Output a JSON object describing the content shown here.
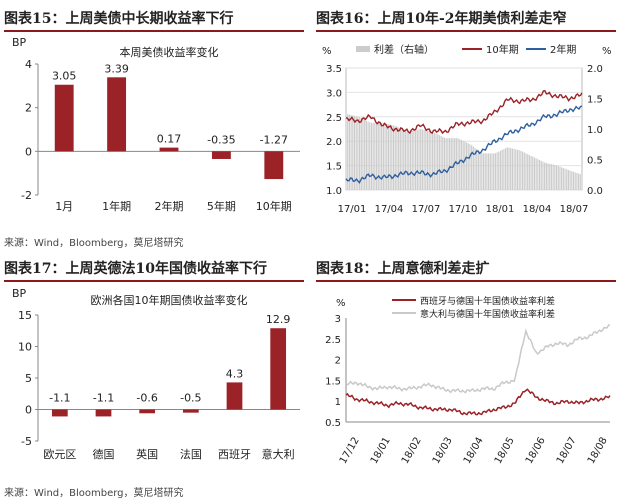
{
  "panels": {
    "p15": {
      "title": "图表15：上周美债中长期收益率下行"
    },
    "p16": {
      "title": "图表16：上周10年-2年期美债利差走窄"
    },
    "p17": {
      "title": "图表17：上周英德法10年国债收益率下行"
    },
    "p18": {
      "title": "图表18：上周意德利差走扩"
    }
  },
  "sources": {
    "top": "来源：Wind，Bloomberg，莫尼塔研究",
    "bottom": "来源：Wind，Bloomberg，莫尼塔研究"
  },
  "colors": {
    "bar": "#9b2226",
    "line10y": "#9b2226",
    "line2y": "#2f5f9e",
    "spread": "#cccccc",
    "line_it": "#c9c9c9",
    "rule": "#8c1a1a"
  },
  "chart_data": [
    {
      "type": "bar",
      "title": "本周美债收益率变化",
      "ylabel": "BP",
      "categories": [
        "1月",
        "1年期",
        "2年期",
        "5年期",
        "10年期"
      ],
      "values": [
        3.05,
        3.39,
        0.17,
        -0.35,
        -1.27
      ],
      "value_labels": [
        "3.05",
        "3.39",
        "0.17",
        "-0.35",
        "-1.27"
      ],
      "ylim": [
        -2,
        4
      ],
      "yticks": [
        "-2",
        "0",
        "2",
        "4"
      ]
    },
    {
      "type": "line",
      "ylabel_left": "%",
      "ylabel_right": "%",
      "ylim_left": [
        1.0,
        3.5
      ],
      "ylim_right": [
        0.0,
        2.0
      ],
      "yticks_left": [
        "1.0",
        "1.5",
        "2.0",
        "2.5",
        "3.0",
        "3.5"
      ],
      "yticks_right": [
        "0.0",
        "0.5",
        "1.0",
        "1.5",
        "2.0"
      ],
      "xticks": [
        "17/01",
        "17/04",
        "17/07",
        "17/10",
        "18/01",
        "18/04",
        "18/07"
      ],
      "legend": [
        "利差（右轴）",
        "10年期",
        "2年期"
      ],
      "grid": true,
      "x": [
        "17/01",
        "17/02",
        "17/03",
        "17/04",
        "17/05",
        "17/06",
        "17/07",
        "17/08",
        "17/09",
        "17/10",
        "17/11",
        "17/12",
        "18/01",
        "18/02",
        "18/03",
        "18/04",
        "18/05",
        "18/06",
        "18/07",
        "18/08"
      ],
      "series": [
        {
          "name": "利差（右轴）",
          "axis": "right",
          "values": [
            1.25,
            1.2,
            1.1,
            1.1,
            1.05,
            0.95,
            1.0,
            0.95,
            0.85,
            0.85,
            0.75,
            0.6,
            0.6,
            0.7,
            0.65,
            0.55,
            0.45,
            0.4,
            0.32,
            0.25
          ]
        },
        {
          "name": "10年期",
          "axis": "left",
          "values": [
            2.45,
            2.42,
            2.5,
            2.32,
            2.25,
            2.2,
            2.32,
            2.2,
            2.2,
            2.35,
            2.38,
            2.42,
            2.6,
            2.85,
            2.82,
            2.85,
            3.0,
            2.92,
            2.88,
            2.95
          ]
        },
        {
          "name": "2年期",
          "axis": "left",
          "values": [
            1.2,
            1.2,
            1.3,
            1.25,
            1.3,
            1.35,
            1.35,
            1.32,
            1.4,
            1.55,
            1.7,
            1.82,
            2.0,
            2.15,
            2.25,
            2.35,
            2.5,
            2.55,
            2.65,
            2.68
          ]
        }
      ]
    },
    {
      "type": "bar",
      "title": "欧洲各国10年期国债收益率变化",
      "ylabel": "BP",
      "categories": [
        "欧元区",
        "德国",
        "英国",
        "法国",
        "西班牙",
        "意大利"
      ],
      "values": [
        -1.1,
        -1.1,
        -0.6,
        -0.5,
        4.3,
        12.9
      ],
      "value_labels": [
        "-1.1",
        "-1.1",
        "-0.6",
        "-0.5",
        "4.3",
        "12.9"
      ],
      "ylim": [
        -5,
        15
      ],
      "yticks": [
        "-5",
        "0",
        "5",
        "10",
        "15"
      ]
    },
    {
      "type": "line",
      "ylabel": "%",
      "ylim": [
        0.5,
        3.0
      ],
      "yticks": [
        "0.5",
        "1",
        "1.5",
        "2",
        "2.5",
        "3"
      ],
      "xticks": [
        "17/12",
        "18/01",
        "18/02",
        "18/03",
        "18/04",
        "18/05",
        "18/06",
        "18/07",
        "18/08"
      ],
      "legend": [
        "西班牙与德国十年国债收益率利差",
        "意大利与德国十年国债收益率利差"
      ],
      "x": [
        "17/12",
        "18/01a",
        "18/01",
        "18/01b",
        "18/02a",
        "18/02",
        "18/02b",
        "18/03a",
        "18/03",
        "18/03b",
        "18/04a",
        "18/04",
        "18/04b",
        "18/05a",
        "18/05",
        "18/05b",
        "18/05c",
        "18/05d",
        "18/06",
        "18/06b",
        "18/07a",
        "18/07",
        "18/07b",
        "18/08a",
        "18/08",
        "18/08b"
      ],
      "series": [
        {
          "name": "西班牙与德国十年国债收益率利差",
          "values": [
            1.15,
            1.05,
            1.0,
            0.95,
            0.9,
            0.95,
            0.92,
            0.85,
            0.82,
            0.8,
            0.8,
            0.72,
            0.7,
            0.72,
            0.8,
            0.85,
            0.95,
            1.3,
            1.1,
            1.0,
            0.95,
            1.0,
            0.95,
            1.02,
            1.05,
            1.1
          ]
        },
        {
          "name": "意大利与德国十年国债收益率利差",
          "values": [
            1.4,
            1.45,
            1.35,
            1.3,
            1.35,
            1.3,
            1.3,
            1.35,
            1.4,
            1.3,
            1.25,
            1.25,
            1.25,
            1.3,
            1.3,
            1.45,
            1.5,
            2.7,
            2.15,
            2.3,
            2.4,
            2.35,
            2.5,
            2.55,
            2.7,
            2.8
          ]
        }
      ]
    }
  ]
}
